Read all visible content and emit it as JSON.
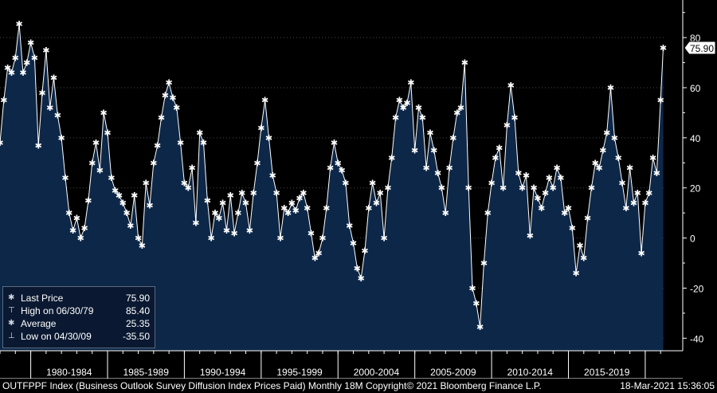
{
  "chart_data": {
    "type": "area",
    "ylim": [
      -45,
      95
    ],
    "yticks": [
      80,
      60,
      40,
      20,
      0,
      -20,
      -40
    ],
    "period_labels": [
      "1980-1984",
      "1985-1989",
      "1990-1994",
      "1995-1999",
      "2000-2004",
      "2005-2009",
      "2010-2014",
      "2015-2019"
    ],
    "x_range": [
      1978.0,
      2021.3
    ],
    "series": [
      {
        "values": [
          [
            1978.0,
            38
          ],
          [
            1978.25,
            55
          ],
          [
            1978.5,
            68
          ],
          [
            1978.75,
            66
          ],
          [
            1979.0,
            72
          ],
          [
            1979.25,
            85.4
          ],
          [
            1979.5,
            66
          ],
          [
            1979.75,
            70
          ],
          [
            1980.0,
            78
          ],
          [
            1980.25,
            72
          ],
          [
            1980.5,
            37
          ],
          [
            1980.75,
            58
          ],
          [
            1981.0,
            75
          ],
          [
            1981.25,
            52
          ],
          [
            1981.5,
            64
          ],
          [
            1981.75,
            49
          ],
          [
            1982.0,
            40
          ],
          [
            1982.25,
            24
          ],
          [
            1982.5,
            10
          ],
          [
            1982.75,
            3
          ],
          [
            1983.0,
            8
          ],
          [
            1983.25,
            0
          ],
          [
            1983.5,
            4
          ],
          [
            1983.75,
            15
          ],
          [
            1984.0,
            30
          ],
          [
            1984.25,
            38
          ],
          [
            1984.5,
            27
          ],
          [
            1984.75,
            50
          ],
          [
            1985.0,
            42
          ],
          [
            1985.25,
            24
          ],
          [
            1985.5,
            19
          ],
          [
            1985.75,
            17
          ],
          [
            1986.0,
            14
          ],
          [
            1986.25,
            10
          ],
          [
            1986.5,
            5
          ],
          [
            1986.75,
            17
          ],
          [
            1987.0,
            0
          ],
          [
            1987.25,
            -3
          ],
          [
            1987.5,
            22
          ],
          [
            1987.75,
            13
          ],
          [
            1988.0,
            30
          ],
          [
            1988.25,
            37
          ],
          [
            1988.5,
            48
          ],
          [
            1988.75,
            57
          ],
          [
            1989.0,
            62
          ],
          [
            1989.25,
            56
          ],
          [
            1989.5,
            52
          ],
          [
            1989.75,
            38
          ],
          [
            1990.0,
            22
          ],
          [
            1990.25,
            20
          ],
          [
            1990.5,
            28
          ],
          [
            1990.75,
            6
          ],
          [
            1991.0,
            42
          ],
          [
            1991.25,
            38
          ],
          [
            1991.5,
            15
          ],
          [
            1991.75,
            0
          ],
          [
            1992.0,
            10
          ],
          [
            1992.25,
            8
          ],
          [
            1992.5,
            14
          ],
          [
            1992.75,
            3
          ],
          [
            1993.0,
            17
          ],
          [
            1993.25,
            2
          ],
          [
            1993.5,
            10
          ],
          [
            1993.75,
            18
          ],
          [
            1994.0,
            14
          ],
          [
            1994.25,
            3
          ],
          [
            1994.5,
            18
          ],
          [
            1994.75,
            30
          ],
          [
            1995.0,
            44
          ],
          [
            1995.25,
            55
          ],
          [
            1995.5,
            40
          ],
          [
            1995.75,
            25
          ],
          [
            1996.0,
            18
          ],
          [
            1996.25,
            0
          ],
          [
            1996.5,
            12
          ],
          [
            1996.75,
            10
          ],
          [
            1997.0,
            14
          ],
          [
            1997.25,
            11
          ],
          [
            1997.5,
            16
          ],
          [
            1997.75,
            18
          ],
          [
            1998.0,
            12
          ],
          [
            1998.25,
            2
          ],
          [
            1998.5,
            -8
          ],
          [
            1998.75,
            -6
          ],
          [
            1999.0,
            0
          ],
          [
            1999.25,
            12
          ],
          [
            1999.5,
            28
          ],
          [
            1999.75,
            38
          ],
          [
            2000.0,
            30
          ],
          [
            2000.25,
            27
          ],
          [
            2000.5,
            22
          ],
          [
            2000.75,
            5
          ],
          [
            2001.0,
            -2
          ],
          [
            2001.25,
            -12
          ],
          [
            2001.5,
            -16
          ],
          [
            2001.75,
            -5
          ],
          [
            2002.0,
            12
          ],
          [
            2002.25,
            22
          ],
          [
            2002.5,
            14
          ],
          [
            2002.75,
            18
          ],
          [
            2003.0,
            0
          ],
          [
            2003.25,
            20
          ],
          [
            2003.5,
            32
          ],
          [
            2003.75,
            48
          ],
          [
            2004.0,
            55
          ],
          [
            2004.25,
            52
          ],
          [
            2004.5,
            54
          ],
          [
            2004.75,
            62
          ],
          [
            2005.0,
            35
          ],
          [
            2005.25,
            52
          ],
          [
            2005.5,
            48
          ],
          [
            2005.75,
            28
          ],
          [
            2006.0,
            42
          ],
          [
            2006.25,
            35
          ],
          [
            2006.5,
            26
          ],
          [
            2006.75,
            20
          ],
          [
            2007.0,
            10
          ],
          [
            2007.25,
            28
          ],
          [
            2007.5,
            40
          ],
          [
            2007.75,
            50
          ],
          [
            2008.0,
            52
          ],
          [
            2008.25,
            70
          ],
          [
            2008.5,
            20
          ],
          [
            2008.75,
            -20
          ],
          [
            2009.0,
            -26
          ],
          [
            2009.25,
            -35.5
          ],
          [
            2009.5,
            -10
          ],
          [
            2009.75,
            10
          ],
          [
            2010.0,
            22
          ],
          [
            2010.25,
            32
          ],
          [
            2010.5,
            36
          ],
          [
            2010.75,
            20
          ],
          [
            2011.0,
            45
          ],
          [
            2011.25,
            61
          ],
          [
            2011.5,
            48
          ],
          [
            2011.75,
            26
          ],
          [
            2012.0,
            20
          ],
          [
            2012.25,
            25
          ],
          [
            2012.5,
            1
          ],
          [
            2012.75,
            20
          ],
          [
            2013.0,
            16
          ],
          [
            2013.25,
            12
          ],
          [
            2013.5,
            18
          ],
          [
            2013.75,
            24
          ],
          [
            2014.0,
            20
          ],
          [
            2014.25,
            28
          ],
          [
            2014.5,
            24
          ],
          [
            2014.75,
            10
          ],
          [
            2015.0,
            12
          ],
          [
            2015.25,
            4
          ],
          [
            2015.5,
            -14
          ],
          [
            2015.75,
            -3
          ],
          [
            2016.0,
            -8
          ],
          [
            2016.25,
            8
          ],
          [
            2016.5,
            20
          ],
          [
            2016.75,
            30
          ],
          [
            2017.0,
            28
          ],
          [
            2017.25,
            35
          ],
          [
            2017.5,
            42
          ],
          [
            2017.75,
            60
          ],
          [
            2018.0,
            40
          ],
          [
            2018.25,
            32
          ],
          [
            2018.5,
            22
          ],
          [
            2018.75,
            12
          ],
          [
            2019.0,
            28
          ],
          [
            2019.25,
            14
          ],
          [
            2019.5,
            18
          ],
          [
            2019.75,
            -6
          ],
          [
            2020.0,
            14
          ],
          [
            2020.25,
            18
          ],
          [
            2020.5,
            32
          ],
          [
            2020.75,
            26
          ],
          [
            2021.0,
            55
          ],
          [
            2021.17,
            75.9
          ]
        ]
      }
    ],
    "last_value_label": "75.90"
  },
  "legend": {
    "items": [
      {
        "label": "Last Price",
        "value": "75.90",
        "mark": "✱"
      },
      {
        "label": "High on 06/30/79",
        "value": "85.40",
        "mark": "⊤"
      },
      {
        "label": "Average",
        "value": "25.35",
        "mark": "✱"
      },
      {
        "label": "Low on 04/30/09",
        "value": "-35.50",
        "mark": "⊥"
      }
    ]
  },
  "footer": {
    "left": "OUTFPPF Index (Business Outlook Survey Diffusion Index Prices Paid)  Monthly 18M  Copyright© 2021 Bloomberg Finance L.P.",
    "right": "18-Mar-2021 15:36:05"
  },
  "colors": {
    "fill": "#0d2748",
    "line": "#ffffff",
    "background": "#000000",
    "axis": "#ffffff",
    "grid": "#4a4a4a",
    "label_box": "#ffffff"
  }
}
